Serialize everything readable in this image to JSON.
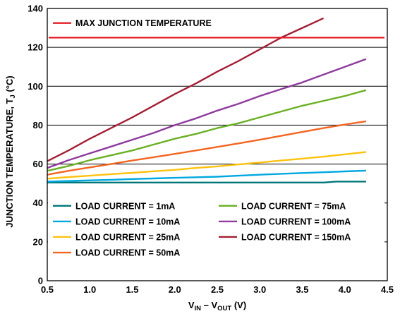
{
  "chart_data": {
    "type": "line",
    "xlabel": {
      "main": "V",
      "sub1": "IN",
      "mid": " – V",
      "sub2": "OUT",
      "tail": " (V)"
    },
    "ylabel": {
      "main": "JUNCTION TEMPERATURE, T",
      "sub": "J",
      "tail": " (°C)"
    },
    "xlim": [
      0.5,
      4.5
    ],
    "ylim": [
      0,
      140
    ],
    "xticks": [
      "0.5",
      "1.0",
      "1.5",
      "2.0",
      "2.5",
      "3.0",
      "3.5",
      "4.0",
      "4.5"
    ],
    "yticks": [
      "0",
      "20",
      "40",
      "60",
      "80",
      "100",
      "120",
      "140"
    ],
    "grid": "horizontal",
    "legend_position": "bottom-inside",
    "reference_line": {
      "label": "MAX JUNCTION TEMPERATURE",
      "value": 125,
      "color": "#e41e26"
    },
    "series": [
      {
        "name": "LOAD CURRENT = 1mA",
        "color": "#00787a",
        "x": [
          0.5,
          0.75,
          1.0,
          1.5,
          2.0,
          2.5,
          3.0,
          3.5,
          3.75,
          3.9,
          4.25
        ],
        "y": [
          50.5,
          50.5,
          50.5,
          50.5,
          50.5,
          50.5,
          50.5,
          50.5,
          50.5,
          51,
          51
        ]
      },
      {
        "name": "LOAD CURRENT = 10mA",
        "color": "#00a8e0",
        "x": [
          0.5,
          0.75,
          1.0,
          1.25,
          1.5,
          1.75,
          2.0,
          2.25,
          2.5,
          2.75,
          3.0,
          3.25,
          3.5,
          3.75,
          4.0,
          4.25
        ],
        "y": [
          51,
          51.3,
          51.6,
          51.9,
          52.3,
          52.6,
          52.9,
          53.2,
          53.5,
          54,
          54.5,
          55,
          55.4,
          55.8,
          56.2,
          56.6
        ]
      },
      {
        "name": "LOAD CURRENT = 25mA",
        "color": "#ffc20e",
        "x": [
          0.5,
          0.75,
          1.0,
          1.25,
          1.5,
          1.75,
          2.0,
          2.25,
          2.5,
          2.75,
          3.0,
          3.25,
          3.5,
          3.75,
          4.0,
          4.25
        ],
        "y": [
          52.5,
          53.3,
          54,
          54.8,
          55.5,
          56.3,
          57,
          58,
          58.8,
          59.8,
          60.8,
          61.8,
          62.8,
          63.8,
          65,
          66.2
        ]
      },
      {
        "name": "LOAD CURRENT = 50mA",
        "color": "#f26522",
        "x": [
          0.5,
          0.75,
          1.0,
          1.25,
          1.5,
          1.75,
          2.0,
          2.25,
          2.5,
          2.75,
          3.0,
          3.25,
          3.5,
          3.75,
          4.0,
          4.25
        ],
        "y": [
          54.5,
          56.5,
          58.3,
          60,
          61.8,
          63.5,
          65.2,
          67,
          68.8,
          70.6,
          72.5,
          74.5,
          76.5,
          78.5,
          80.3,
          82
        ]
      },
      {
        "name": "LOAD CURRENT = 75mA",
        "color": "#6ab023",
        "x": [
          0.5,
          0.75,
          1.0,
          1.25,
          1.5,
          1.75,
          2.0,
          2.25,
          2.5,
          2.75,
          3.0,
          3.25,
          3.5,
          3.75,
          4.0,
          4.25
        ],
        "y": [
          56.5,
          59,
          62,
          64.5,
          67,
          70,
          73,
          75.5,
          78.5,
          81,
          84,
          87,
          90,
          92.5,
          95,
          98
        ]
      },
      {
        "name": "LOAD CURRENT = 100mA",
        "color": "#8e3a9d",
        "x": [
          0.5,
          0.75,
          1.0,
          1.25,
          1.5,
          1.75,
          2.0,
          2.25,
          2.5,
          2.75,
          3.0,
          3.25,
          3.5,
          3.75,
          4.0,
          4.25
        ],
        "y": [
          58,
          62,
          65.5,
          69,
          72.5,
          76,
          80,
          83.5,
          87.5,
          91,
          95,
          98.5,
          102,
          106,
          110,
          114
        ]
      },
      {
        "name": "LOAD CURRENT = 150mA",
        "color": "#a31f34",
        "x": [
          0.5,
          0.75,
          1.0,
          1.25,
          1.5,
          1.75,
          2.0,
          2.25,
          2.5,
          2.75,
          3.0,
          3.25,
          3.5,
          3.75
        ],
        "y": [
          61.5,
          67,
          73,
          78.5,
          84,
          90,
          96,
          101.5,
          107.5,
          113,
          119,
          125,
          130,
          135
        ]
      }
    ],
    "legend_order": [
      0,
      4,
      1,
      5,
      2,
      6,
      3
    ]
  }
}
